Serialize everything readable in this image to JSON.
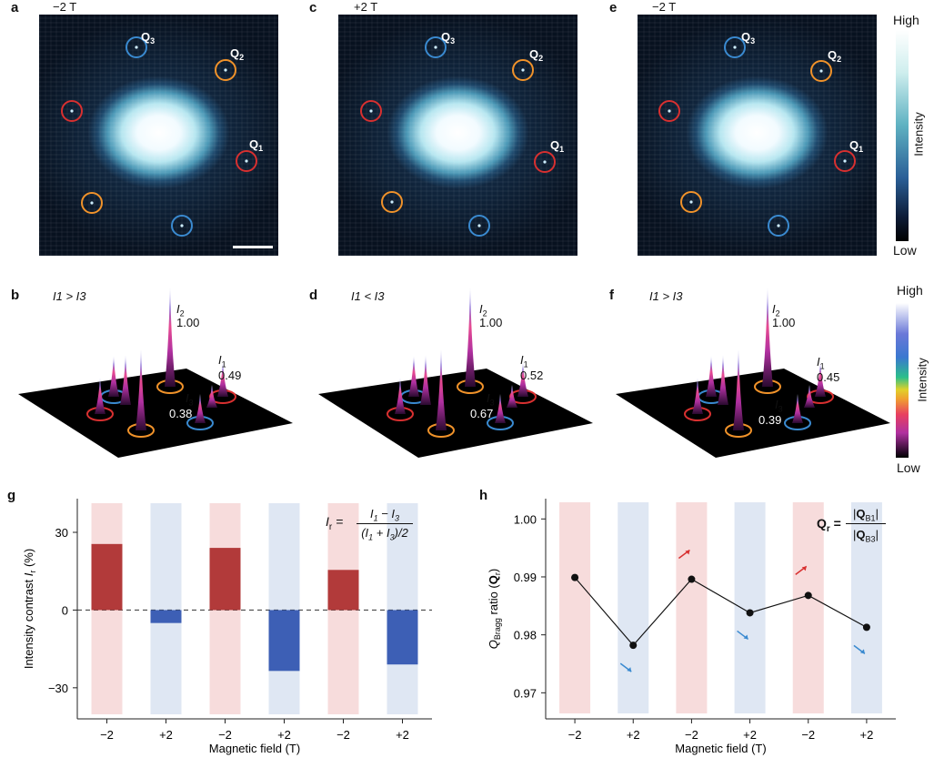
{
  "panels": {
    "a": {
      "label": "a",
      "field": "−2 T"
    },
    "c": {
      "label": "c",
      "field": "+2 T"
    },
    "e": {
      "label": "e",
      "field": "−2 T"
    },
    "b": {
      "label": "b"
    },
    "d": {
      "label": "d"
    },
    "f": {
      "label": "f"
    },
    "g": {
      "label": "g"
    },
    "h": {
      "label": "h"
    }
  },
  "peak_labels": {
    "q1": "Q1",
    "q2": "Q2",
    "q3": "Q3"
  },
  "colorbar_top": {
    "high": "High",
    "low": "Low",
    "title": "Intensity"
  },
  "colorbar_bottom": {
    "high": "High",
    "low": "Low",
    "title": "Intensity"
  },
  "surface_panels": [
    {
      "id": "b",
      "comparison": "I1 > I3",
      "i2": "1.00",
      "i1": "0.49",
      "i3": "0.38"
    },
    {
      "id": "d",
      "comparison": "I1 < I3",
      "i2": "1.00",
      "i1": "0.52",
      "i3": "0.67"
    },
    {
      "id": "f",
      "comparison": "I1 > I3",
      "i2": "1.00",
      "i1": "0.45",
      "i3": "0.39"
    }
  ],
  "colors": {
    "red_ring": "#d83030",
    "orange_ring": "#f0922a",
    "blue_ring": "#3a8ad0",
    "neg_field_bar": "#b23a3a",
    "pos_field_bar": "#3d5fb5",
    "neg_band": "#f7dcdc",
    "pos_band": "#dfe7f3"
  },
  "chart_data": [
    {
      "type": "bar",
      "categories": [
        "−2",
        "+2",
        "−2",
        "+2",
        "−2",
        "+2"
      ],
      "values": [
        25.5,
        -5,
        24,
        -23.5,
        15.5,
        -21
      ],
      "ylabel": "Intensity contrast I_r (%)",
      "xlabel": "Magnetic field (T)",
      "ylim": [
        -42,
        43
      ],
      "yticks": [
        "30",
        "0",
        "−30"
      ],
      "ytick_values": [
        30,
        0,
        -30
      ],
      "formula": {
        "lhs": "I_r",
        "num": "I_1 − I_3",
        "den": "(I_1 + I_3)/2"
      }
    },
    {
      "type": "line",
      "categories": [
        "−2",
        "+2",
        "−2",
        "+2",
        "−2",
        "+2"
      ],
      "values": [
        0.9899,
        0.9782,
        0.9896,
        0.9838,
        0.9868,
        0.9813
      ],
      "ylabel": "Q_Bragg ratio (Q_r)",
      "xlabel": "Magnetic field (T)",
      "ylim": [
        0.9655,
        1.0035
      ],
      "yticks": [
        "1.00",
        "0.99",
        "0.98",
        "0.97"
      ],
      "ytick_values": [
        1.0,
        0.99,
        0.98,
        0.97
      ],
      "formula": {
        "lhs": "Q_r",
        "num": "|Q_B1|",
        "den": "|Q_B3|"
      }
    }
  ]
}
